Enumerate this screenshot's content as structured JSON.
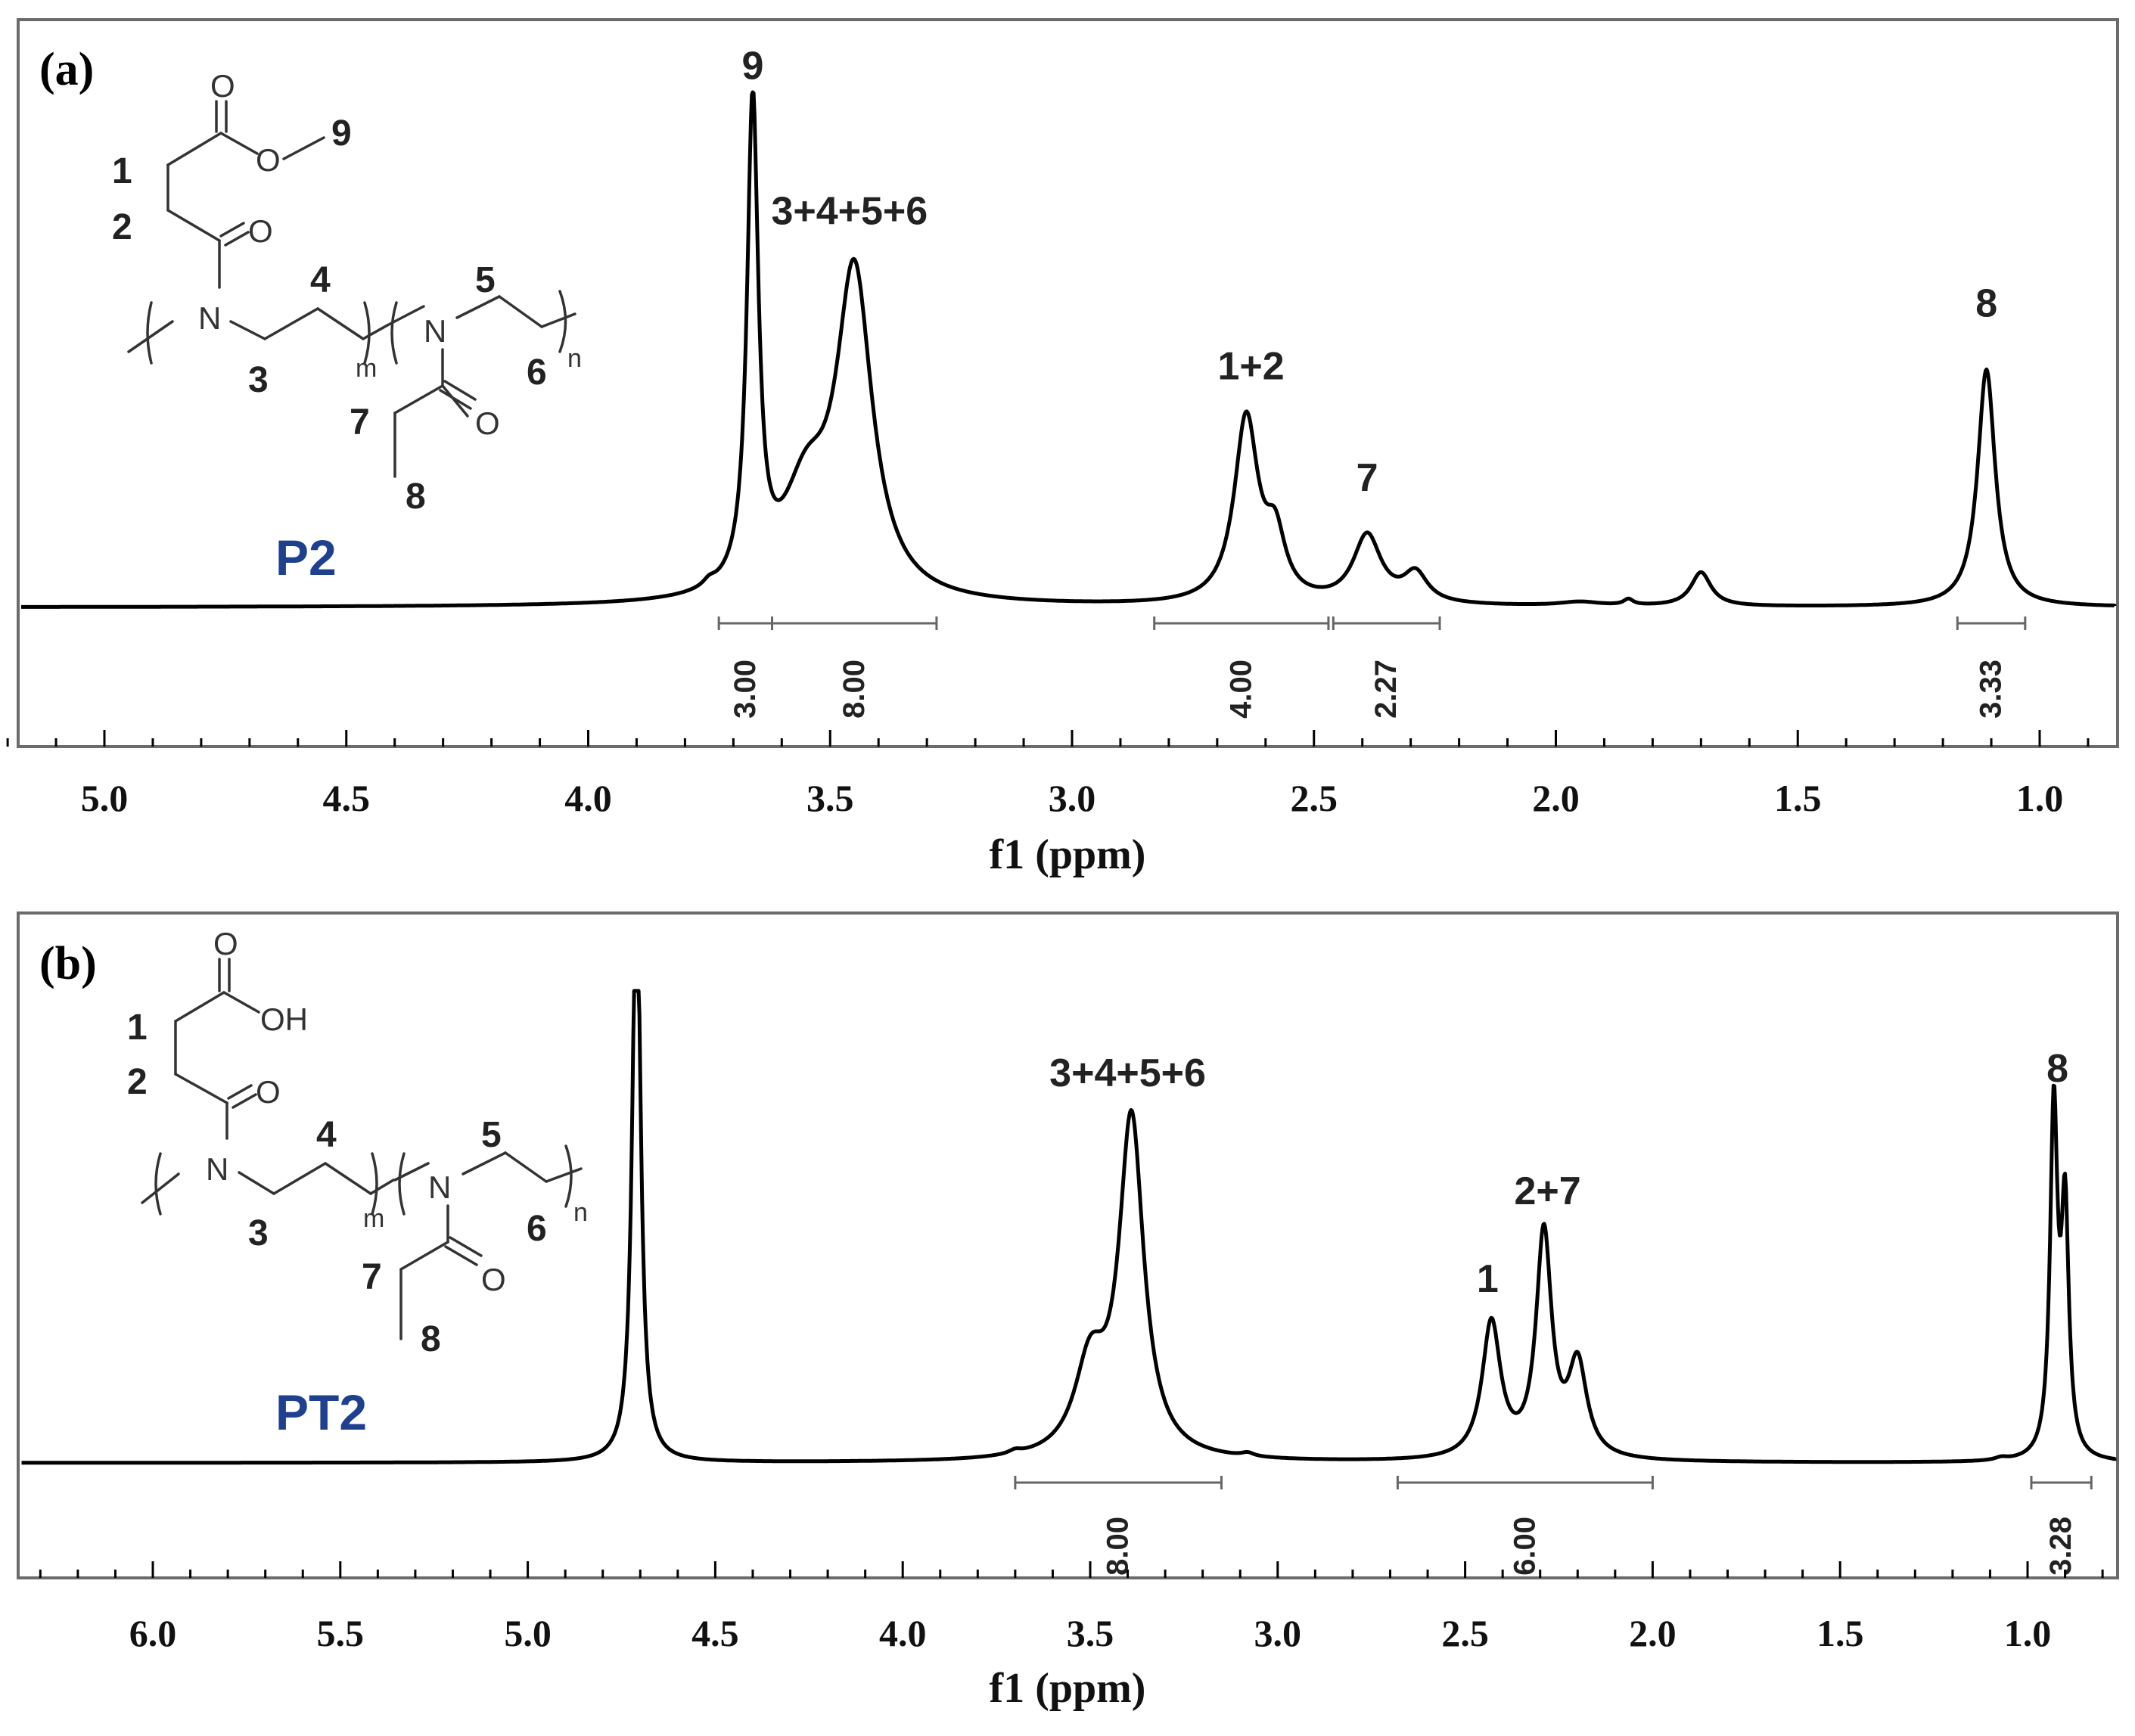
{
  "colors": {
    "compound_label": "#1f3f8f"
  },
  "chart_data": [
    {
      "panel": "(a)",
      "type": "line",
      "compound": "P2",
      "xlabel": "f1 (ppm)",
      "xlim": [
        5.2,
        0.8
      ],
      "xticks": [
        "5.0",
        "4.5",
        "4.0",
        "3.5",
        "3.0",
        "2.5",
        "2.0",
        "1.5",
        "1.0"
      ],
      "baseline_intensity": 0.0,
      "peaks": [
        {
          "center": 3.66,
          "height": 1.0,
          "width": 0.014
        },
        {
          "center": 3.45,
          "height": 0.66,
          "width": 0.045
        },
        {
          "center": 3.55,
          "height": 0.2,
          "width": 0.06
        },
        {
          "center": 2.64,
          "height": 0.38,
          "width": 0.03
        },
        {
          "center": 2.58,
          "height": 0.12,
          "width": 0.025
        },
        {
          "center": 2.39,
          "height": 0.14,
          "width": 0.035
        },
        {
          "center": 2.29,
          "height": 0.06,
          "width": 0.03
        },
        {
          "center": 1.7,
          "height": 0.07,
          "width": 0.025
        },
        {
          "center": 1.95,
          "height": 0.008,
          "width": 0.05
        },
        {
          "center": 1.85,
          "height": 0.012,
          "width": 0.012
        },
        {
          "center": 3.75,
          "height": 0.012,
          "width": 0.015
        },
        {
          "center": 1.11,
          "height": 0.49,
          "width": 0.022
        }
      ],
      "peak_labels": [
        {
          "text": "9",
          "ppm": 3.66,
          "y_intensity": 1.09
        },
        {
          "text": "3+4+5+6",
          "ppm": 3.46,
          "y_intensity": 0.79
        },
        {
          "text": "1+2",
          "ppm": 2.63,
          "y_intensity": 0.47
        },
        {
          "text": "7",
          "ppm": 2.39,
          "y_intensity": 0.24
        },
        {
          "text": "8",
          "ppm": 1.11,
          "y_intensity": 0.6
        }
      ],
      "integrals": [
        {
          "from": 3.73,
          "to": 3.62,
          "value": "3.00"
        },
        {
          "from": 3.62,
          "to": 3.28,
          "value": "8.00"
        },
        {
          "from": 2.83,
          "to": 2.47,
          "value": "4.00"
        },
        {
          "from": 2.46,
          "to": 2.24,
          "value": "2.27"
        },
        {
          "from": 1.17,
          "to": 1.03,
          "value": "3.33"
        }
      ],
      "structure": {
        "numbers": [
          "1",
          "2",
          "3",
          "4",
          "5",
          "6",
          "7",
          "8",
          "9"
        ],
        "atoms": [
          "O",
          "O",
          "O",
          "N",
          "N",
          "O"
        ],
        "subscripts": [
          "m",
          "n"
        ]
      }
    },
    {
      "panel": "(b)",
      "type": "line",
      "compound": "PT2",
      "xlabel": "f1 (ppm)",
      "xlim": [
        6.35,
        0.7
      ],
      "xticks": [
        "6.0",
        "5.5",
        "5.0",
        "4.5",
        "4.0",
        "3.5",
        "3.0",
        "2.5",
        "2.0",
        "1.5",
        "1.0"
      ],
      "baseline_intensity": 0.0,
      "peaks": [
        {
          "center": 4.71,
          "height": 1.4,
          "width": 0.013
        },
        {
          "center": 3.39,
          "height": 0.77,
          "width": 0.04
        },
        {
          "center": 3.5,
          "height": 0.2,
          "width": 0.05
        },
        {
          "center": 2.43,
          "height": 0.31,
          "width": 0.03
        },
        {
          "center": 2.29,
          "height": 0.51,
          "width": 0.025
        },
        {
          "center": 2.2,
          "height": 0.21,
          "width": 0.03
        },
        {
          "center": 0.93,
          "height": 0.79,
          "width": 0.012
        },
        {
          "center": 0.9,
          "height": 0.55,
          "width": 0.012
        },
        {
          "center": 3.7,
          "height": 0.008,
          "width": 0.02
        },
        {
          "center": 3.08,
          "height": 0.008,
          "width": 0.02
        },
        {
          "center": 1.07,
          "height": 0.006,
          "width": 0.02
        }
      ],
      "peak_labels": [
        {
          "text": "3+4+5+6",
          "ppm": 3.4,
          "y_intensity": 0.86
        },
        {
          "text": "1",
          "ppm": 2.44,
          "y_intensity": 0.39
        },
        {
          "text": "2+7",
          "ppm": 2.28,
          "y_intensity": 0.59
        },
        {
          "text": "8",
          "ppm": 0.92,
          "y_intensity": 0.87
        }
      ],
      "integrals": [
        {
          "from": 3.7,
          "to": 3.15,
          "value": "8.00"
        },
        {
          "from": 2.68,
          "to": 2.0,
          "value": "6.00"
        },
        {
          "from": 0.99,
          "to": 0.83,
          "value": "3.28"
        }
      ],
      "structure": {
        "numbers": [
          "1",
          "2",
          "3",
          "4",
          "5",
          "6",
          "7",
          "8"
        ],
        "atoms": [
          "O",
          "OH",
          "O",
          "N",
          "N",
          "O"
        ],
        "subscripts": [
          "m",
          "n"
        ]
      }
    }
  ]
}
